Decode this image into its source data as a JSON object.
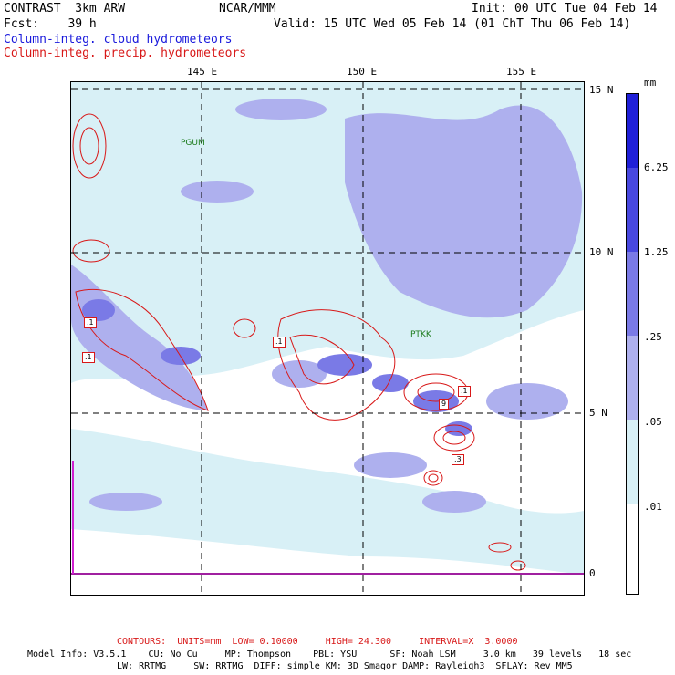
{
  "header": {
    "line1_left": "CONTRAST  3km ARW",
    "line1_center": "NCAR/MMM",
    "line1_right": "Init: 00 UTC Tue 04 Feb 14",
    "line2_left": "Fcst:    39 h",
    "line2_right": "Valid: 15 UTC Wed 05 Feb 14 (01 ChT Thu 06 Feb 14)",
    "line3_blue": "Column-integ. cloud hydrometeors",
    "line4_red": "Column-integ. precip. hydrometeors"
  },
  "map": {
    "lon_labels": [
      "145 E",
      "150 E",
      "155 E"
    ],
    "lat_labels": [
      "15 N",
      "10 N",
      "5 N",
      "0"
    ],
    "stations": [
      "PGUM",
      "PTKK"
    ],
    "contour_boxes": [
      ".1",
      ".1",
      ".1",
      ".1",
      "9",
      ".1",
      ".3"
    ]
  },
  "colorbar": {
    "unit": "mm",
    "labels": [
      "6.25",
      "1.25",
      ".25",
      ".05",
      ".01"
    ],
    "colors": [
      "#2020d8",
      "#4848e0",
      "#7a7ae6",
      "#aeb0ee",
      "#d8f0f6",
      "#ffffff"
    ]
  },
  "footer": {
    "contours": "CONTOURS:  UNITS=mm  LOW= 0.10000     HIGH= 24.300     INTERVAL=X  3.0000",
    "model1": "Model Info: V3.5.1    CU: No Cu     MP: Thompson    PBL: YSU      SF: Noah LSM     3.0 km   39 levels   18 sec",
    "model2": "LW: RRTMG     SW: RRTMG  DIFF: simple KM: 3D Smagor DAMP: Rayleigh3  SFLAY: Rev MM5"
  }
}
